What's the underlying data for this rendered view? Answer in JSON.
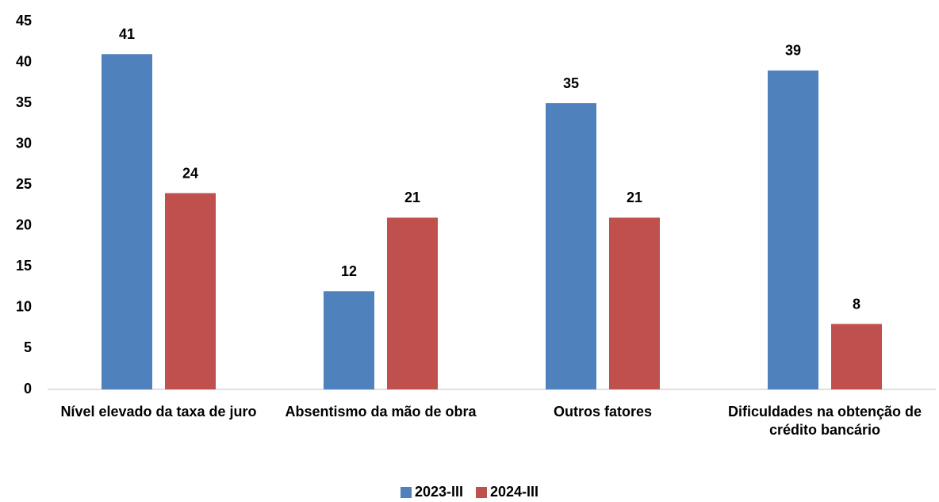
{
  "chart_data": {
    "type": "bar",
    "categories": [
      "Nível elevado da taxa de juro",
      "Absentismo da mão de obra",
      "Outros fatores",
      "Dificuldades na obtenção de crédito bancário"
    ],
    "series": [
      {
        "name": "2023-III",
        "color": "#4f81bd",
        "values": [
          41,
          12,
          35,
          39
        ]
      },
      {
        "name": "2024-III",
        "color": "#c0504d",
        "values": [
          24,
          21,
          21,
          8
        ]
      }
    ],
    "ylim": [
      0,
      45
    ],
    "yticks": [
      0,
      5,
      10,
      15,
      20,
      25,
      30,
      35,
      40,
      45
    ],
    "grid": false,
    "legend": "bottom"
  }
}
